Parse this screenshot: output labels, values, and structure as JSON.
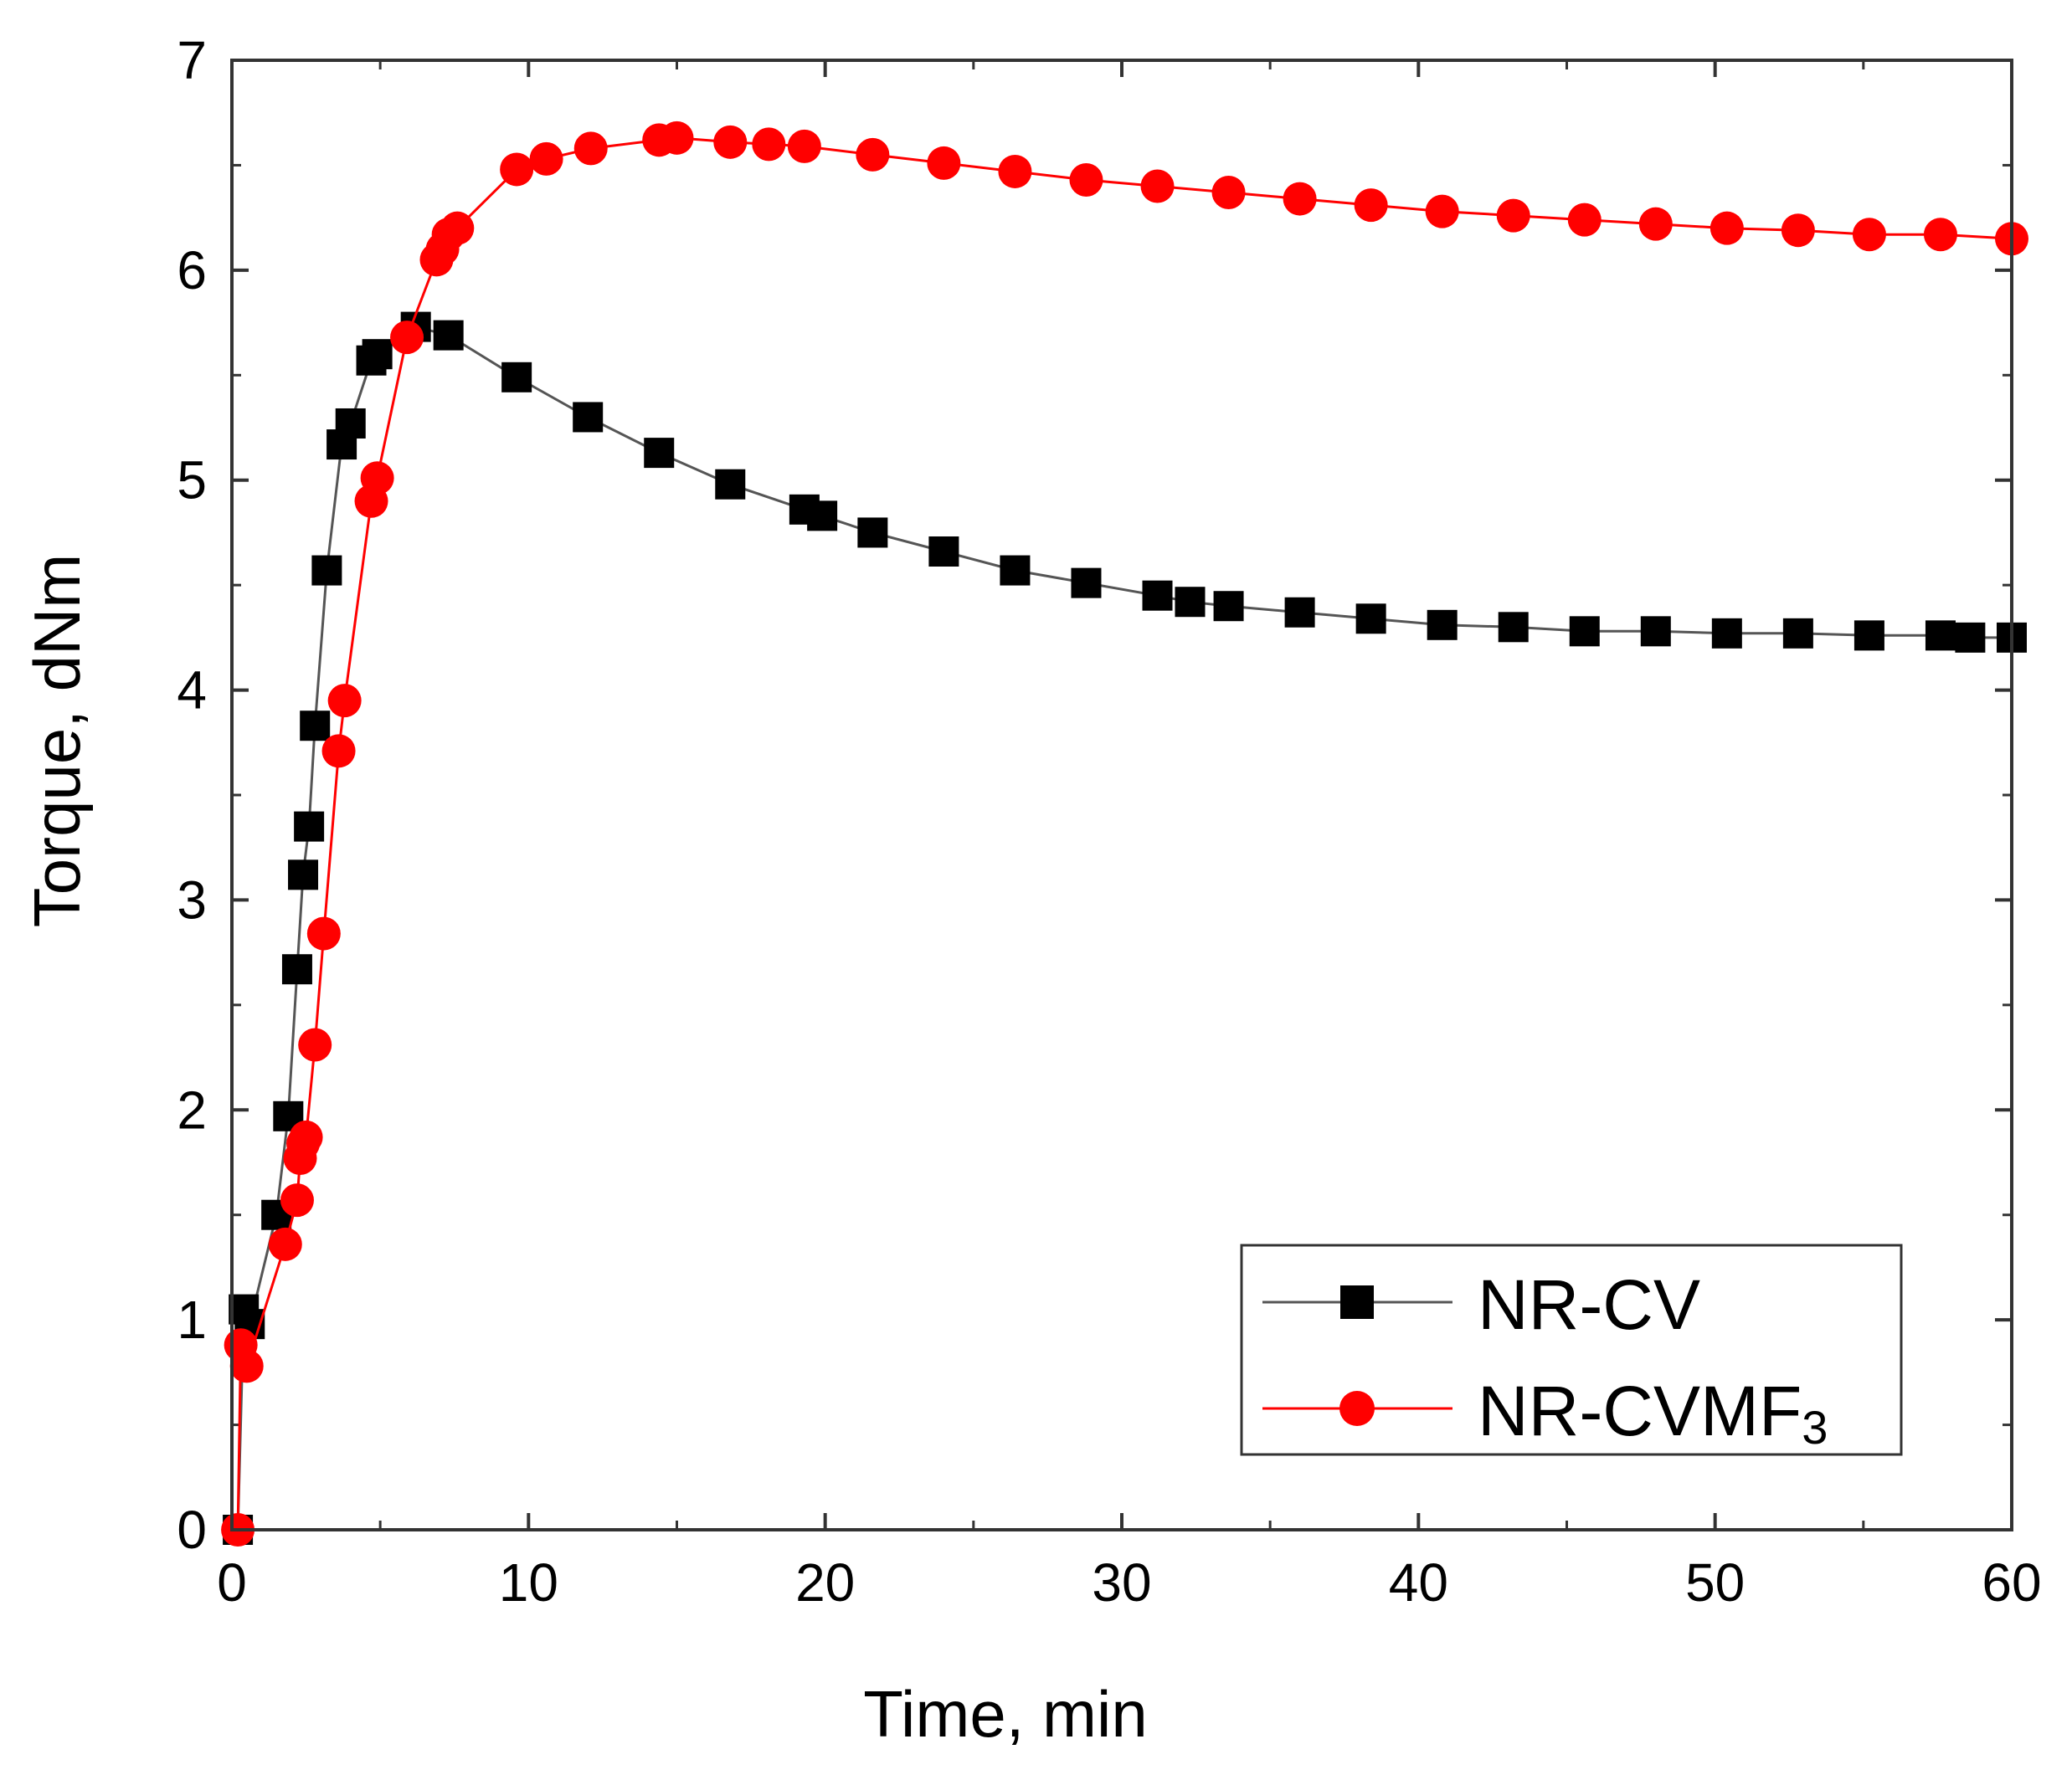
{
  "chart_data": {
    "type": "line",
    "xlabel": "Time, min",
    "ylabel": "Torque, dNm",
    "xlim": [
      0,
      60
    ],
    "ylim": [
      0,
      7
    ],
    "xticks": [
      0,
      10,
      20,
      30,
      40,
      50,
      60
    ],
    "yticks": [
      0,
      1,
      2,
      3,
      4,
      5,
      6,
      7
    ],
    "legend_position": "bottom-right",
    "series": [
      {
        "name": "NR-CV",
        "legend_main": "NR-CV",
        "marker": "square",
        "color": "#000000",
        "line_color": "#555555",
        "x": [
          0.2,
          0.4,
          0.6,
          1.5,
          1.9,
          2.2,
          2.4,
          2.6,
          2.8,
          3.2,
          3.7,
          4.0,
          4.7,
          4.9,
          6.2,
          7.3,
          9.6,
          12.0,
          14.4,
          16.8,
          19.3,
          19.9,
          21.6,
          24.0,
          26.4,
          28.8,
          31.2,
          32.3,
          33.6,
          36.0,
          38.4,
          40.8,
          43.2,
          45.6,
          48.0,
          50.4,
          52.8,
          55.2,
          57.6,
          58.6,
          60.0
        ],
        "y": [
          0.0,
          1.05,
          0.98,
          1.5,
          1.97,
          2.67,
          3.12,
          3.35,
          3.83,
          4.57,
          5.17,
          5.27,
          5.57,
          5.6,
          5.73,
          5.69,
          5.49,
          5.3,
          5.13,
          4.98,
          4.86,
          4.83,
          4.75,
          4.66,
          4.57,
          4.51,
          4.45,
          4.42,
          4.4,
          4.37,
          4.34,
          4.31,
          4.3,
          4.28,
          4.28,
          4.27,
          4.27,
          4.26,
          4.26,
          4.25,
          4.25
        ]
      },
      {
        "name": "NR-CVMF3",
        "legend_main": "NR-CVMF",
        "legend_sub": "3",
        "marker": "circle",
        "color": "#ff0000",
        "line_color": "#ff0000",
        "x": [
          0.2,
          0.3,
          0.5,
          1.8,
          2.2,
          2.3,
          2.4,
          2.5,
          2.8,
          3.1,
          3.6,
          3.8,
          4.7,
          4.9,
          5.9,
          6.9,
          7.1,
          7.3,
          7.6,
          9.6,
          10.6,
          12.1,
          14.4,
          15.0,
          16.8,
          18.1,
          19.3,
          21.6,
          24.0,
          26.4,
          28.8,
          31.2,
          33.6,
          36.0,
          38.4,
          40.8,
          43.2,
          45.6,
          48.0,
          50.4,
          52.8,
          55.2,
          57.6,
          60.0
        ],
        "y": [
          0.0,
          0.88,
          0.78,
          1.36,
          1.57,
          1.77,
          1.84,
          1.87,
          2.31,
          2.84,
          3.71,
          3.95,
          4.9,
          5.01,
          5.68,
          6.05,
          6.1,
          6.17,
          6.2,
          6.48,
          6.53,
          6.58,
          6.62,
          6.63,
          6.61,
          6.6,
          6.59,
          6.55,
          6.51,
          6.47,
          6.43,
          6.4,
          6.37,
          6.34,
          6.31,
          6.28,
          6.26,
          6.24,
          6.22,
          6.2,
          6.19,
          6.17,
          6.17,
          6.15
        ]
      }
    ]
  }
}
